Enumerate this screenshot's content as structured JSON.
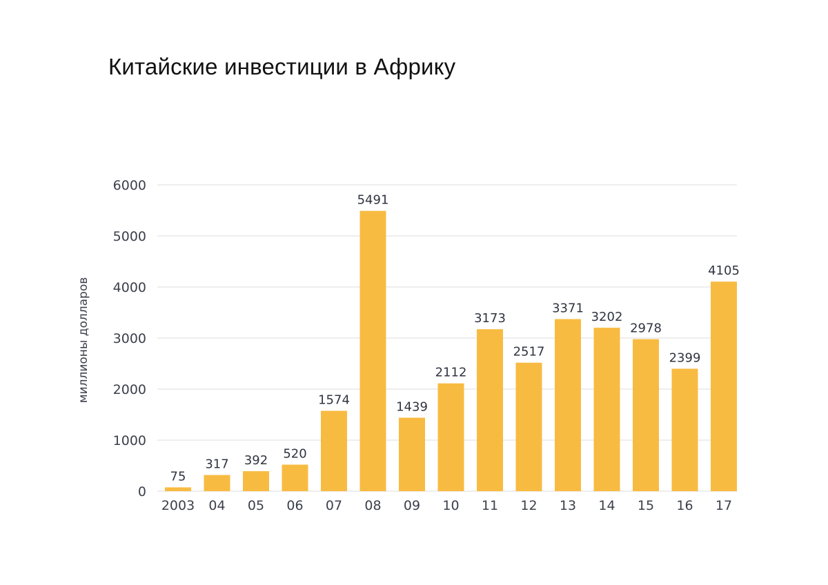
{
  "chart_data": {
    "type": "bar",
    "title": "Китайские инвестиции в Африку",
    "ylabel": "миллионы долларов",
    "xlabel": "",
    "categories": [
      "2003",
      "04",
      "05",
      "06",
      "07",
      "08",
      "09",
      "10",
      "11",
      "12",
      "13",
      "14",
      "15",
      "16",
      "17"
    ],
    "values": [
      75,
      317,
      392,
      520,
      1574,
      5491,
      1439,
      2112,
      3173,
      2517,
      3371,
      3202,
      2978,
      2399,
      4105
    ],
    "ylim": [
      0,
      6000
    ],
    "yticks": [
      0,
      1000,
      2000,
      3000,
      4000,
      5000,
      6000
    ],
    "grid": true,
    "bar_color": "#f8bb42",
    "grid_color": "#dedede"
  }
}
